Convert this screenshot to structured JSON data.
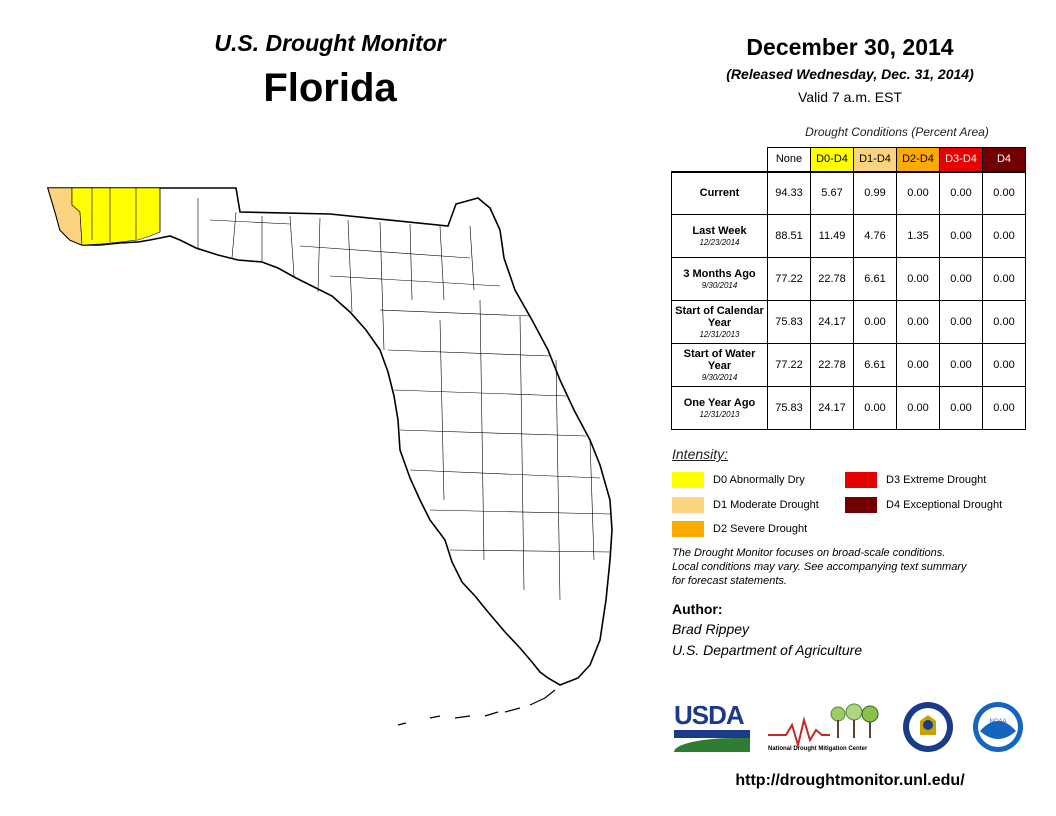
{
  "header": {
    "product": "U.S. Drought Monitor",
    "state": "Florida",
    "date": "December 30, 2014",
    "released": "(Released Wednesday, Dec. 31, 2014)",
    "valid": "Valid 7 a.m. EST"
  },
  "table": {
    "title": "Drought Conditions (Percent Area)",
    "columns": [
      "None",
      "D0-D4",
      "D1-D4",
      "D2-D4",
      "D3-D4",
      "D4"
    ],
    "rows": [
      {
        "label": "Current",
        "date": "",
        "values": [
          "94.33",
          "5.67",
          "0.99",
          "0.00",
          "0.00",
          "0.00"
        ]
      },
      {
        "label": "Last Week",
        "date": "12/23/2014",
        "values": [
          "88.51",
          "11.49",
          "4.76",
          "1.35",
          "0.00",
          "0.00"
        ]
      },
      {
        "label": "3 Months Ago",
        "date": "9/30/2014",
        "values": [
          "77.22",
          "22.78",
          "6.61",
          "0.00",
          "0.00",
          "0.00"
        ]
      },
      {
        "label": "Start of Calendar Year",
        "date": "12/31/2013",
        "values": [
          "75.83",
          "24.17",
          "0.00",
          "0.00",
          "0.00",
          "0.00"
        ]
      },
      {
        "label": "Start of Water Year",
        "date": "9/30/2014",
        "values": [
          "77.22",
          "22.78",
          "6.61",
          "0.00",
          "0.00",
          "0.00"
        ]
      },
      {
        "label": "One Year Ago",
        "date": "12/31/2013",
        "values": [
          "75.83",
          "24.17",
          "0.00",
          "0.00",
          "0.00",
          "0.00"
        ]
      }
    ]
  },
  "legend": {
    "title": "Intensity:",
    "items": [
      {
        "label": "D0 Abnormally Dry",
        "color": "#ffff00"
      },
      {
        "label": "D1 Moderate Drought",
        "color": "#fcd37f"
      },
      {
        "label": "D2 Severe Drought",
        "color": "#ffaa00"
      },
      {
        "label": "D3 Extreme Drought",
        "color": "#e60000"
      },
      {
        "label": "D4 Exceptional Drought",
        "color": "#730000"
      }
    ]
  },
  "note": {
    "line1": "The Drought Monitor focuses on broad-scale conditions.",
    "line2": "Local conditions may vary. See accompanying text summary",
    "line3": "for forecast statements."
  },
  "author": {
    "label": "Author:",
    "name": "Brad Rippey",
    "org": "U.S. Department of Agriculture"
  },
  "logos": {
    "usda": "USDA",
    "ndmc": "National Drought Mitigation Center",
    "noaa": "NOAA"
  },
  "url": "http://droughtmonitor.unl.edu/"
}
